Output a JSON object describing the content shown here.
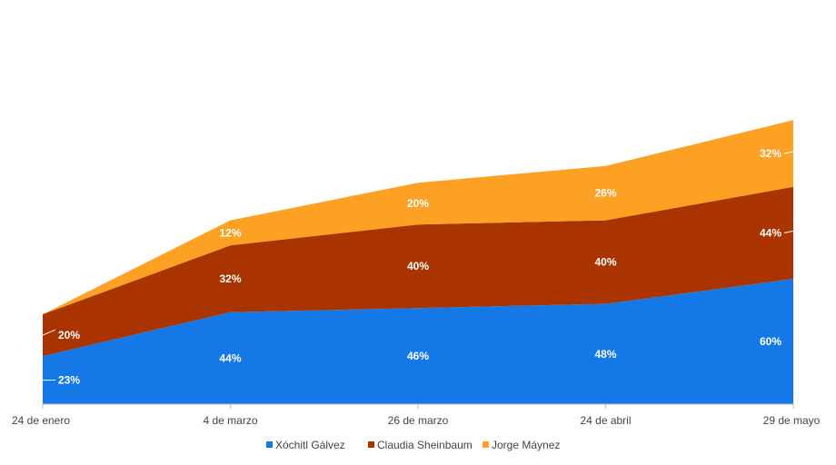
{
  "chart_data": {
    "type": "area",
    "stacked": true,
    "title": "",
    "xlabel": "",
    "ylabel": "",
    "ylim": [
      0,
      160
    ],
    "grid": false,
    "legend_position": "bottom-center",
    "categories": [
      "24 de enero",
      "4 de marzo",
      "26 de marzo",
      "24 de abril",
      "29 de mayo"
    ],
    "series": [
      {
        "name": "Xóchitl Gálvez",
        "color": "#1479e6",
        "values": [
          23,
          44,
          46,
          48,
          60
        ],
        "labels": [
          "23%",
          "44%",
          "46%",
          "48%",
          "60%"
        ]
      },
      {
        "name": "Claudia Sheinbaum",
        "color": "#a93400",
        "values": [
          20,
          32,
          40,
          40,
          44
        ],
        "labels": [
          "20%",
          "32%",
          "40%",
          "40%",
          "44%"
        ]
      },
      {
        "name": "Jorge Máynez",
        "color": "#fca124",
        "values": [
          0,
          12,
          20,
          26,
          32
        ],
        "labels": [
          "",
          "12%",
          "20%",
          "26%",
          "32%"
        ]
      }
    ]
  }
}
